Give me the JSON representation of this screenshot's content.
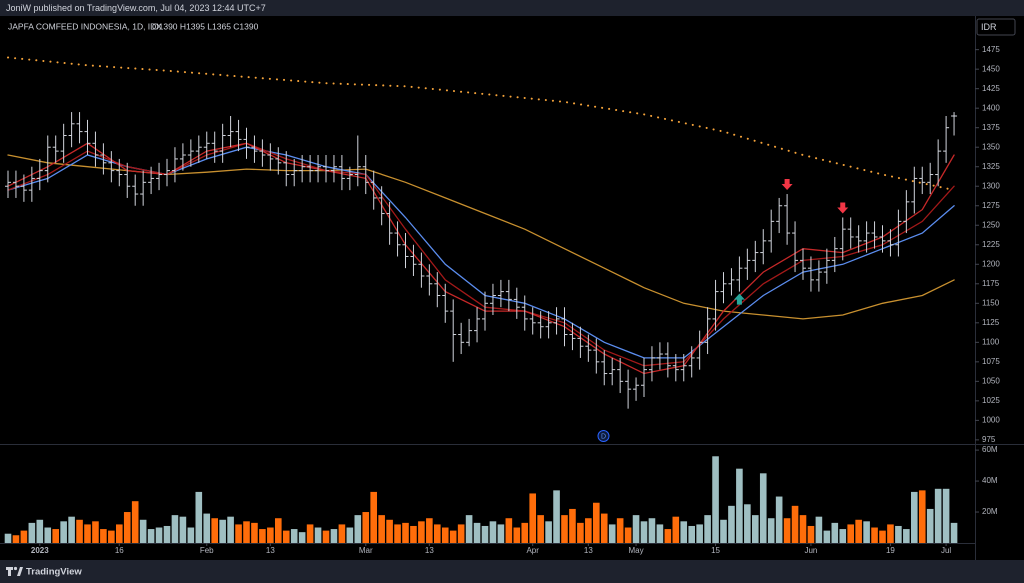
{
  "header": {
    "text": "JoniW published on TradingView.com, Jul 04, 2023 12:44 UTC+7"
  },
  "footer": {
    "text": "TradingView"
  },
  "chart_data": {
    "type": "ohlc",
    "title": "JAPFA COMFEED INDONESIA, 1D, IDX",
    "subtitle": "O1390 H1395 L1365 C1390",
    "currency": "IDR",
    "up_color": "#d1d4dc",
    "categories": [
      null,
      null,
      null,
      null,
      "2023",
      null,
      null,
      null,
      null,
      null,
      null,
      null,
      null,
      null,
      "16",
      null,
      null,
      null,
      null,
      null,
      null,
      null,
      null,
      null,
      null,
      "Feb",
      null,
      null,
      null,
      null,
      null,
      null,
      null,
      "13",
      null,
      null,
      null,
      null,
      null,
      null,
      null,
      null,
      null,
      null,
      null,
      "Mar",
      null,
      null,
      null,
      null,
      null,
      null,
      null,
      "13",
      null,
      null,
      null,
      null,
      null,
      null,
      null,
      null,
      null,
      null,
      null,
      null,
      "Apr",
      null,
      null,
      null,
      null,
      null,
      null,
      "13",
      null,
      null,
      null,
      null,
      null,
      "May",
      null,
      null,
      null,
      null,
      null,
      null,
      null,
      null,
      null,
      "15",
      null,
      null,
      null,
      null,
      null,
      null,
      null,
      null,
      null,
      null,
      null,
      "Jun",
      null,
      null,
      null,
      null,
      null,
      null,
      null,
      null,
      null,
      "19",
      null,
      null,
      null,
      null,
      null,
      null,
      "Jul",
      null
    ],
    "open": [
      1300,
      1305,
      1300,
      1295,
      1310,
      1320,
      1350,
      1345,
      1365,
      1380,
      1370,
      1355,
      1340,
      1330,
      1320,
      1315,
      1300,
      1290,
      1305,
      1310,
      1315,
      1320,
      1335,
      1340,
      1345,
      1350,
      1355,
      1345,
      1365,
      1370,
      1360,
      1350,
      1345,
      1340,
      1335,
      1330,
      1315,
      1320,
      1325,
      1320,
      1325,
      1320,
      1325,
      1310,
      1315,
      1325,
      1305,
      1285,
      1265,
      1240,
      1225,
      1210,
      1200,
      1185,
      1175,
      1160,
      1140,
      1110,
      1100,
      1115,
      1130,
      1150,
      1160,
      1165,
      1155,
      1145,
      1130,
      1125,
      1120,
      1125,
      1130,
      1110,
      1105,
      1095,
      1090,
      1075,
      1060,
      1065,
      1050,
      1040,
      1045,
      1065,
      1080,
      1085,
      1070,
      1065,
      1070,
      1080,
      1100,
      1130,
      1165,
      1175,
      1180,
      1195,
      1205,
      1215,
      1230,
      1255,
      1275,
      1240,
      1205,
      1195,
      1180,
      1190,
      1205,
      1220,
      1245,
      1235,
      1230,
      1240,
      1235,
      1230,
      1225,
      1255,
      1280,
      1310,
      1305,
      1315,
      1345,
      1390
    ],
    "high": [
      1320,
      1320,
      1315,
      1325,
      1335,
      1365,
      1365,
      1380,
      1395,
      1395,
      1385,
      1370,
      1355,
      1345,
      1335,
      1330,
      1315,
      1320,
      1325,
      1330,
      1335,
      1350,
      1355,
      1360,
      1365,
      1370,
      1370,
      1380,
      1390,
      1385,
      1375,
      1365,
      1360,
      1355,
      1350,
      1345,
      1335,
      1340,
      1340,
      1340,
      1340,
      1340,
      1340,
      1325,
      1365,
      1340,
      1320,
      1300,
      1280,
      1255,
      1240,
      1225,
      1215,
      1200,
      1190,
      1175,
      1155,
      1125,
      1130,
      1145,
      1165,
      1175,
      1180,
      1180,
      1170,
      1160,
      1145,
      1140,
      1140,
      1145,
      1145,
      1125,
      1120,
      1110,
      1105,
      1090,
      1080,
      1080,
      1065,
      1055,
      1080,
      1095,
      1100,
      1100,
      1085,
      1085,
      1095,
      1115,
      1145,
      1180,
      1190,
      1195,
      1210,
      1220,
      1230,
      1245,
      1270,
      1285,
      1290,
      1255,
      1220,
      1210,
      1205,
      1220,
      1235,
      1260,
      1260,
      1250,
      1255,
      1255,
      1250,
      1245,
      1270,
      1295,
      1325,
      1325,
      1330,
      1360,
      1390,
      1395
    ],
    "low": [
      1285,
      1285,
      1280,
      1280,
      1295,
      1305,
      1330,
      1330,
      1350,
      1355,
      1340,
      1325,
      1315,
      1305,
      1300,
      1285,
      1275,
      1275,
      1290,
      1295,
      1300,
      1305,
      1320,
      1325,
      1330,
      1335,
      1330,
      1330,
      1350,
      1345,
      1335,
      1330,
      1325,
      1320,
      1315,
      1300,
      1300,
      1305,
      1305,
      1305,
      1305,
      1305,
      1295,
      1295,
      1300,
      1290,
      1270,
      1250,
      1225,
      1210,
      1195,
      1185,
      1170,
      1160,
      1145,
      1125,
      1075,
      1085,
      1095,
      1100,
      1115,
      1135,
      1145,
      1140,
      1130,
      1115,
      1110,
      1105,
      1105,
      1110,
      1095,
      1090,
      1080,
      1075,
      1060,
      1045,
      1045,
      1035,
      1015,
      1025,
      1030,
      1050,
      1065,
      1055,
      1050,
      1050,
      1055,
      1065,
      1085,
      1115,
      1150,
      1160,
      1165,
      1180,
      1190,
      1200,
      1215,
      1240,
      1225,
      1190,
      1180,
      1165,
      1165,
      1175,
      1190,
      1205,
      1220,
      1215,
      1215,
      1220,
      1215,
      1210,
      1210,
      1240,
      1265,
      1290,
      1290,
      1300,
      1330,
      1365
    ],
    "close": [
      1305,
      1300,
      1295,
      1310,
      1320,
      1350,
      1345,
      1365,
      1380,
      1370,
      1355,
      1340,
      1330,
      1320,
      1315,
      1300,
      1290,
      1305,
      1310,
      1315,
      1320,
      1335,
      1340,
      1345,
      1350,
      1355,
      1345,
      1365,
      1370,
      1360,
      1350,
      1345,
      1340,
      1335,
      1330,
      1315,
      1320,
      1325,
      1320,
      1325,
      1320,
      1325,
      1310,
      1315,
      1325,
      1305,
      1285,
      1265,
      1240,
      1225,
      1210,
      1200,
      1185,
      1175,
      1160,
      1140,
      1110,
      1100,
      1115,
      1130,
      1150,
      1160,
      1165,
      1155,
      1145,
      1130,
      1125,
      1120,
      1125,
      1130,
      1110,
      1105,
      1095,
      1090,
      1075,
      1060,
      1065,
      1050,
      1040,
      1045,
      1065,
      1080,
      1085,
      1070,
      1065,
      1070,
      1080,
      1100,
      1130,
      1165,
      1175,
      1180,
      1195,
      1205,
      1215,
      1230,
      1255,
      1275,
      1240,
      1205,
      1195,
      1180,
      1190,
      1205,
      1220,
      1245,
      1235,
      1230,
      1240,
      1235,
      1230,
      1225,
      1255,
      1280,
      1310,
      1305,
      1315,
      1345,
      1375,
      1390
    ],
    "volume": [
      6000000.0,
      5000000.0,
      8000000.0,
      13000000.0,
      15000000.0,
      10000000.0,
      9000000.0,
      14000000.0,
      17000000.0,
      15000000.0,
      12000000.0,
      14000000.0,
      9000000.0,
      8000000.0,
      12000000.0,
      20000000.0,
      27000000.0,
      15000000.0,
      9000000.0,
      10000000.0,
      11000000.0,
      18000000.0,
      17000000.0,
      10000000.0,
      33000000.0,
      19000000.0,
      16000000.0,
      15000000.0,
      17000000.0,
      12000000.0,
      14000000.0,
      13000000.0,
      9000000.0,
      10000000.0,
      16000000.0,
      8000000.0,
      9000000.0,
      7000000.0,
      12000000.0,
      10000000.0,
      8000000.0,
      9000000.0,
      12000000.0,
      10000000.0,
      18000000.0,
      20000000.0,
      33000000.0,
      18000000.0,
      15000000.0,
      12000000.0,
      13000000.0,
      11000000.0,
      14000000.0,
      16000000.0,
      12000000.0,
      10000000.0,
      8000000.0,
      12000000.0,
      18000000.0,
      13000000.0,
      11000000.0,
      14000000.0,
      12000000.0,
      16000000.0,
      10000000.0,
      13000000.0,
      32000000.0,
      18000000.0,
      14000000.0,
      34000000.0,
      18000000.0,
      22000000.0,
      13000000.0,
      16000000.0,
      26000000.0,
      19000000.0,
      12000000.0,
      16000000.0,
      10000000.0,
      18000000.0,
      14000000.0,
      16000000.0,
      12000000.0,
      9000000.0,
      17000000.0,
      14000000.0,
      11000000.0,
      12000000.0,
      18000000.0,
      56000000.0,
      15000000.0,
      24000000.0,
      48000000.0,
      25000000.0,
      18000000.0,
      45000000.0,
      16000000.0,
      30000000.0,
      16000000.0,
      24000000.0,
      18000000.0,
      11000000.0,
      17000000.0,
      8000000.0,
      13000000.0,
      9000000.0,
      12000000.0,
      15000000.0,
      14000000.0,
      10000000.0,
      8000000.0,
      12000000.0,
      11000000.0,
      9000000.0,
      33000000.0,
      34000000.0,
      22000000.0,
      35000000.0,
      35000000.0,
      13000000.0
    ],
    "volume_colors": {
      "up": "#9fbfc2",
      "down": "#ff6d0a"
    },
    "ylim": [
      971,
      1513
    ],
    "yticks": [
      975,
      1000,
      1025,
      1050,
      1075,
      1100,
      1125,
      1150,
      1175,
      1200,
      1225,
      1250,
      1275,
      1300,
      1325,
      1350,
      1375,
      1400,
      1425,
      1450,
      1475
    ],
    "volume_ylim": [
      0,
      62000000.0
    ],
    "volume_yticks": [
      {
        "value": 20000000.0,
        "label": "20M"
      },
      {
        "value": 40000000.0,
        "label": "40M"
      },
      {
        "value": 60000000.0,
        "label": "60M"
      }
    ],
    "grid": false,
    "overlays": [
      {
        "color": "#f5a33a",
        "dotted": true,
        "x": [
          0,
          10,
          20,
          30,
          40,
          50,
          60,
          70,
          80,
          90,
          100,
          110,
          119
        ],
        "values": [
          1465,
          1455,
          1448,
          1440,
          1432,
          1428,
          1418,
          1408,
          1392,
          1370,
          1340,
          1315,
          1295
        ]
      },
      {
        "color": "#c8902f",
        "dotted": false,
        "x": [
          0,
          5,
          10,
          15,
          20,
          25,
          30,
          35,
          40,
          45,
          50,
          55,
          60,
          65,
          70,
          75,
          80,
          85,
          90,
          95,
          100,
          105,
          110,
          115,
          119
        ],
        "values": [
          1340,
          1330,
          1325,
          1320,
          1315,
          1318,
          1322,
          1320,
          1320,
          1322,
          1305,
          1285,
          1265,
          1245,
          1220,
          1195,
          1170,
          1150,
          1140,
          1135,
          1130,
          1135,
          1150,
          1160,
          1180
        ]
      },
      {
        "color": "#5b8def",
        "dotted": false,
        "x": [
          0,
          5,
          10,
          15,
          20,
          25,
          30,
          35,
          40,
          45,
          50,
          55,
          60,
          65,
          70,
          75,
          80,
          85,
          90,
          95,
          100,
          105,
          110,
          115,
          119
        ],
        "values": [
          1295,
          1310,
          1340,
          1325,
          1315,
          1335,
          1350,
          1340,
          1325,
          1315,
          1260,
          1200,
          1160,
          1150,
          1130,
          1100,
          1080,
          1080,
          1120,
          1160,
          1190,
          1200,
          1220,
          1240,
          1275
        ]
      },
      {
        "color": "#a31919",
        "dotted": false,
        "x": [
          0,
          5,
          10,
          15,
          20,
          25,
          30,
          35,
          40,
          45,
          50,
          55,
          60,
          65,
          70,
          75,
          80,
          85,
          90,
          95,
          100,
          105,
          110,
          115,
          119
        ],
        "values": [
          1295,
          1315,
          1345,
          1325,
          1315,
          1340,
          1355,
          1335,
          1320,
          1315,
          1245,
          1180,
          1145,
          1140,
          1125,
          1090,
          1070,
          1075,
          1130,
          1175,
          1205,
          1210,
          1225,
          1255,
          1300
        ]
      },
      {
        "color": "#c62828",
        "dotted": false,
        "x": [
          0,
          5,
          10,
          15,
          20,
          25,
          30,
          35,
          40,
          45,
          50,
          55,
          60,
          65,
          70,
          75,
          80,
          85,
          90,
          95,
          100,
          105,
          110,
          115,
          119
        ],
        "values": [
          1300,
          1325,
          1355,
          1320,
          1315,
          1345,
          1355,
          1330,
          1320,
          1310,
          1225,
          1165,
          1140,
          1140,
          1120,
          1085,
          1060,
          1070,
          1140,
          1190,
          1220,
          1215,
          1235,
          1270,
          1340
        ]
      }
    ]
  }
}
